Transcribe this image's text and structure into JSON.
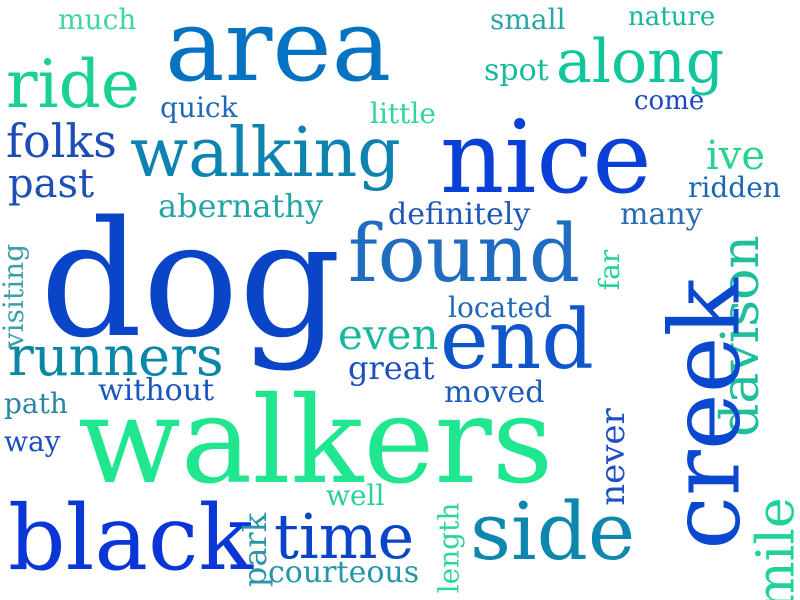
{
  "background": "#ffffff",
  "words": [
    {
      "text": "much",
      "color": "#3fd89a",
      "vertical": false
    },
    {
      "text": "area",
      "color": "#0673c2",
      "vertical": false
    },
    {
      "text": "small",
      "color": "#2aa7a5",
      "vertical": false
    },
    {
      "text": "nature",
      "color": "#19b79e",
      "vertical": false
    },
    {
      "text": "ride",
      "color": "#18d28e",
      "vertical": false
    },
    {
      "text": "along",
      "color": "#11c69a",
      "vertical": false
    },
    {
      "text": "spot",
      "color": "#17ba9c",
      "vertical": false
    },
    {
      "text": "quick",
      "color": "#1f69b8",
      "vertical": false
    },
    {
      "text": "little",
      "color": "#31d59d",
      "vertical": false
    },
    {
      "text": "come",
      "color": "#1f46c4",
      "vertical": false
    },
    {
      "text": "folks",
      "color": "#1c4db6",
      "vertical": false
    },
    {
      "text": "walking",
      "color": "#0e83b0",
      "vertical": false
    },
    {
      "text": "nice",
      "color": "#0a40d6",
      "vertical": false
    },
    {
      "text": "ive",
      "color": "#27d48c",
      "vertical": false
    },
    {
      "text": "past",
      "color": "#1d4fb9",
      "vertical": false
    },
    {
      "text": "ridden",
      "color": "#1c67b5",
      "vertical": false
    },
    {
      "text": "abernathy",
      "color": "#24a4a5",
      "vertical": false
    },
    {
      "text": "definitely",
      "color": "#1f58b5",
      "vertical": false
    },
    {
      "text": "many",
      "color": "#2a6db3",
      "vertical": false
    },
    {
      "text": "dog",
      "color": "#0a45c8",
      "vertical": false
    },
    {
      "text": "found",
      "color": "#1f6cc0",
      "vertical": false
    },
    {
      "text": "visiting",
      "color": "#3b9fa8",
      "vertical": true
    },
    {
      "text": "far",
      "color": "#1fd491",
      "vertical": true
    },
    {
      "text": "located",
      "color": "#1f68b8",
      "vertical": false
    },
    {
      "text": "davison",
      "color": "#1fbf9c",
      "vertical": true
    },
    {
      "text": "creek",
      "color": "#0a48cf",
      "vertical": true
    },
    {
      "text": "even",
      "color": "#1bb99b",
      "vertical": false
    },
    {
      "text": "end",
      "color": "#0e56c9",
      "vertical": false
    },
    {
      "text": "runners",
      "color": "#0a86a6",
      "vertical": false
    },
    {
      "text": "great",
      "color": "#1a50c0",
      "vertical": false
    },
    {
      "text": "without",
      "color": "#1a56bd",
      "vertical": false
    },
    {
      "text": "moved",
      "color": "#1c5bbd",
      "vertical": false
    },
    {
      "text": "path",
      "color": "#2b86a6",
      "vertical": false
    },
    {
      "text": "never",
      "color": "#1f50c1",
      "vertical": true
    },
    {
      "text": "mile",
      "color": "#1ed29a",
      "vertical": true
    },
    {
      "text": "way",
      "color": "#1b4fbd",
      "vertical": false
    },
    {
      "text": "walkers",
      "color": "#1fe68f",
      "vertical": false
    },
    {
      "text": "well",
      "color": "#2bcf98",
      "vertical": false
    },
    {
      "text": "black",
      "color": "#0a36d8",
      "vertical": false
    },
    {
      "text": "park",
      "color": "#2a96a8",
      "vertical": true
    },
    {
      "text": "time",
      "color": "#0a44c8",
      "vertical": false
    },
    {
      "text": "length",
      "color": "#2fd49c",
      "vertical": true
    },
    {
      "text": "side",
      "color": "#0d87ad",
      "vertical": false
    },
    {
      "text": "courteous",
      "color": "#2496a8",
      "vertical": false
    }
  ]
}
